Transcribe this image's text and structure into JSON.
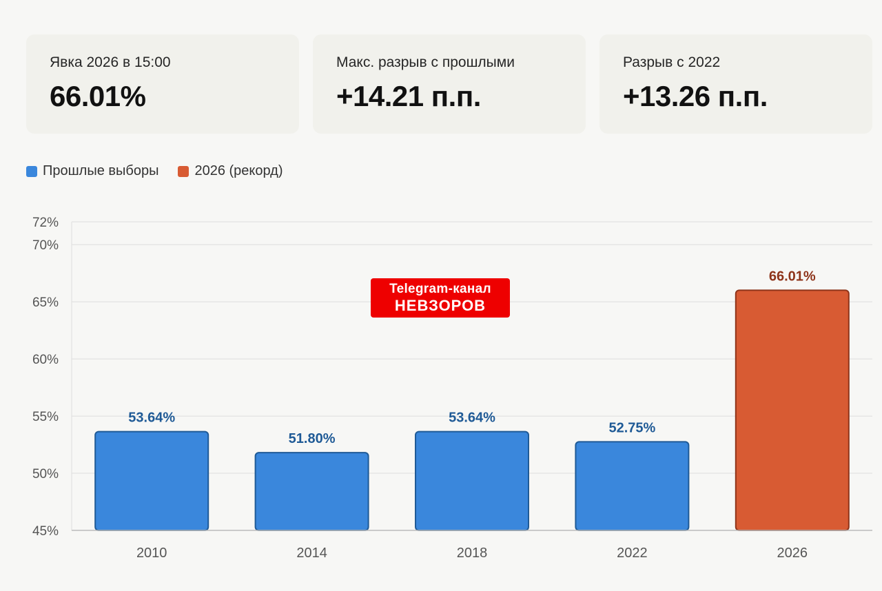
{
  "cards": [
    {
      "label": "Явка 2026 в 15:00",
      "value": "66.01%"
    },
    {
      "label": "Макс. разрыв с прошлыми",
      "value": "+14.21 п.п."
    },
    {
      "label": "Разрыв с 2022",
      "value": "+13.26 п.п."
    }
  ],
  "legend": [
    {
      "label": "Прошлые выборы",
      "color": "#3a87dc"
    },
    {
      "label": "2026 (рекорд)",
      "color": "#d85b33"
    }
  ],
  "watermark": {
    "line1": "Telegram-канал",
    "line2": "НЕВЗОРОВ"
  },
  "colors": {
    "past_fill": "#3a87dc",
    "past_stroke": "#1f5a96",
    "past_label": "#1f5a96",
    "record_fill": "#d85b33",
    "record_stroke": "#8e341a",
    "record_label": "#8e341a",
    "grid": "#dddddd",
    "axis_text": "#555555"
  },
  "chart_data": {
    "type": "bar",
    "categories": [
      "2010",
      "2014",
      "2018",
      "2022",
      "2026"
    ],
    "values": [
      53.64,
      51.8,
      53.64,
      52.75,
      66.01
    ],
    "value_labels": [
      "53.64%",
      "51.80%",
      "53.64%",
      "52.75%",
      "66.01%"
    ],
    "highlight_index": 4,
    "ylim": [
      45,
      72
    ],
    "yticks": [
      45,
      50,
      55,
      60,
      65,
      70,
      72
    ],
    "ytick_labels": [
      "45%",
      "50%",
      "55%",
      "60%",
      "65%",
      "70%",
      "72%"
    ],
    "grid": true,
    "legend_position": "top-left",
    "title": "",
    "xlabel": "",
    "ylabel": ""
  }
}
